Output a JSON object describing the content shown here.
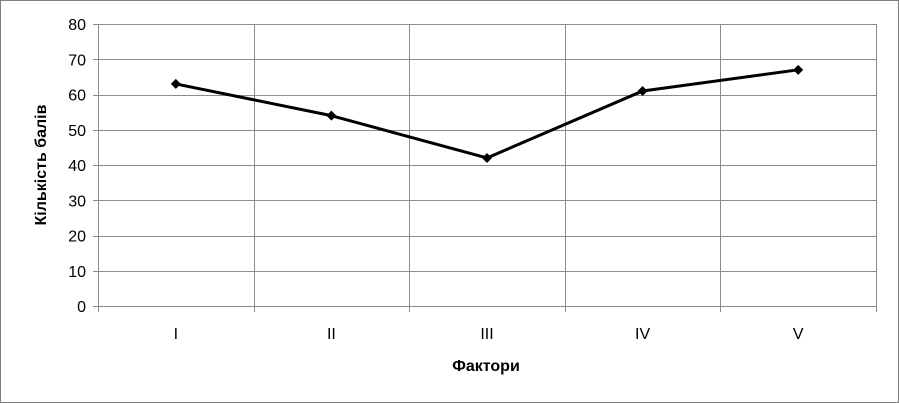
{
  "chart_data": {
    "type": "line",
    "title": "",
    "xlabel": "Фактори",
    "ylabel": "Кількість балів",
    "categories": [
      "I",
      "II",
      "III",
      "IV",
      "V"
    ],
    "series": [
      {
        "values": [
          63,
          54,
          42,
          61,
          67
        ]
      }
    ],
    "ylim": [
      0,
      80
    ],
    "yticks": [
      "0",
      "10",
      "20",
      "30",
      "40",
      "50",
      "60",
      "70",
      "80"
    ],
    "grid": true,
    "legend": "none",
    "colors": {
      "line": "#000000",
      "grid": "#8c8c8c",
      "frame": "#7f7f7f"
    }
  }
}
